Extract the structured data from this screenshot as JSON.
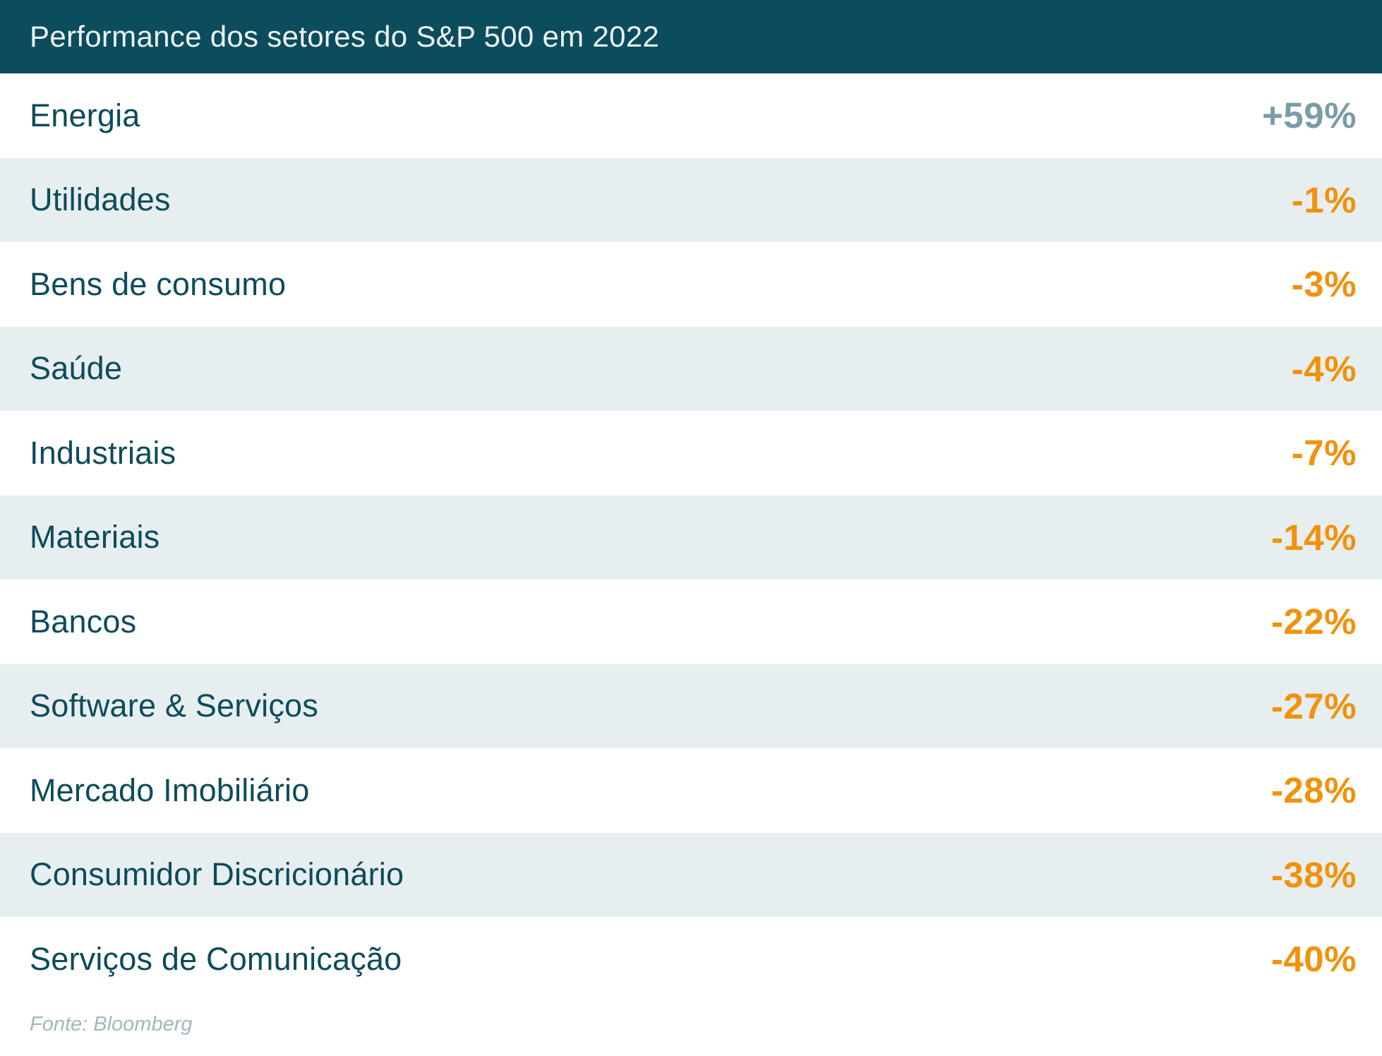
{
  "header": {
    "title": "Performance dos setores do S&P 500 em 2022"
  },
  "rows": [
    {
      "label": "Energia",
      "value": "+59%",
      "direction": "positive"
    },
    {
      "label": "Utilidades",
      "value": "-1%",
      "direction": "negative"
    },
    {
      "label": "Bens de consumo",
      "value": "-3%",
      "direction": "negative"
    },
    {
      "label": "Saúde",
      "value": "-4%",
      "direction": "negative"
    },
    {
      "label": "Industriais",
      "value": "-7%",
      "direction": "negative"
    },
    {
      "label": "Materiais",
      "value": "-14%",
      "direction": "negative"
    },
    {
      "label": "Bancos",
      "value": "-22%",
      "direction": "negative"
    },
    {
      "label": "Software & Serviços",
      "value": "-27%",
      "direction": "negative"
    },
    {
      "label": "Mercado Imobiliário",
      "value": "-28%",
      "direction": "negative"
    },
    {
      "label": "Consumidor Discricionário",
      "value": "-38%",
      "direction": "negative"
    },
    {
      "label": "Serviços de Comunicação",
      "value": "-40%",
      "direction": "negative"
    }
  ],
  "footer": {
    "source": "Fonte: Bloomberg"
  },
  "colors": {
    "header_bg": "#0C4D5D",
    "header_text": "#EDF3F5",
    "label_text": "#0D4B5B",
    "stripe_bg": "#E7EEF0",
    "row_bg": "#FFFFFF",
    "positive_value": "#7A9CA9",
    "negative_value": "#F0920B",
    "footer_text": "#A3B6BE"
  },
  "chart_data": {
    "type": "table",
    "title": "Performance dos setores do S&P 500 em 2022",
    "categories": [
      "Energia",
      "Utilidades",
      "Bens de consumo",
      "Saúde",
      "Industriais",
      "Materiais",
      "Bancos",
      "Software & Serviços",
      "Mercado Imobiliário",
      "Consumidor Discricionário",
      "Serviços de Comunicação"
    ],
    "values": [
      59,
      -1,
      -3,
      -4,
      -7,
      -14,
      -22,
      -27,
      -28,
      -38,
      -40
    ],
    "value_labels": [
      "+59%",
      "-1%",
      "-3%",
      "-4%",
      "-7%",
      "-14%",
      "-22%",
      "-27%",
      "-28%",
      "-38%",
      "-40%"
    ],
    "unit": "%",
    "source": "Fonte: Bloomberg",
    "layout": "zebra-striped two-column table, labels left, values right"
  }
}
